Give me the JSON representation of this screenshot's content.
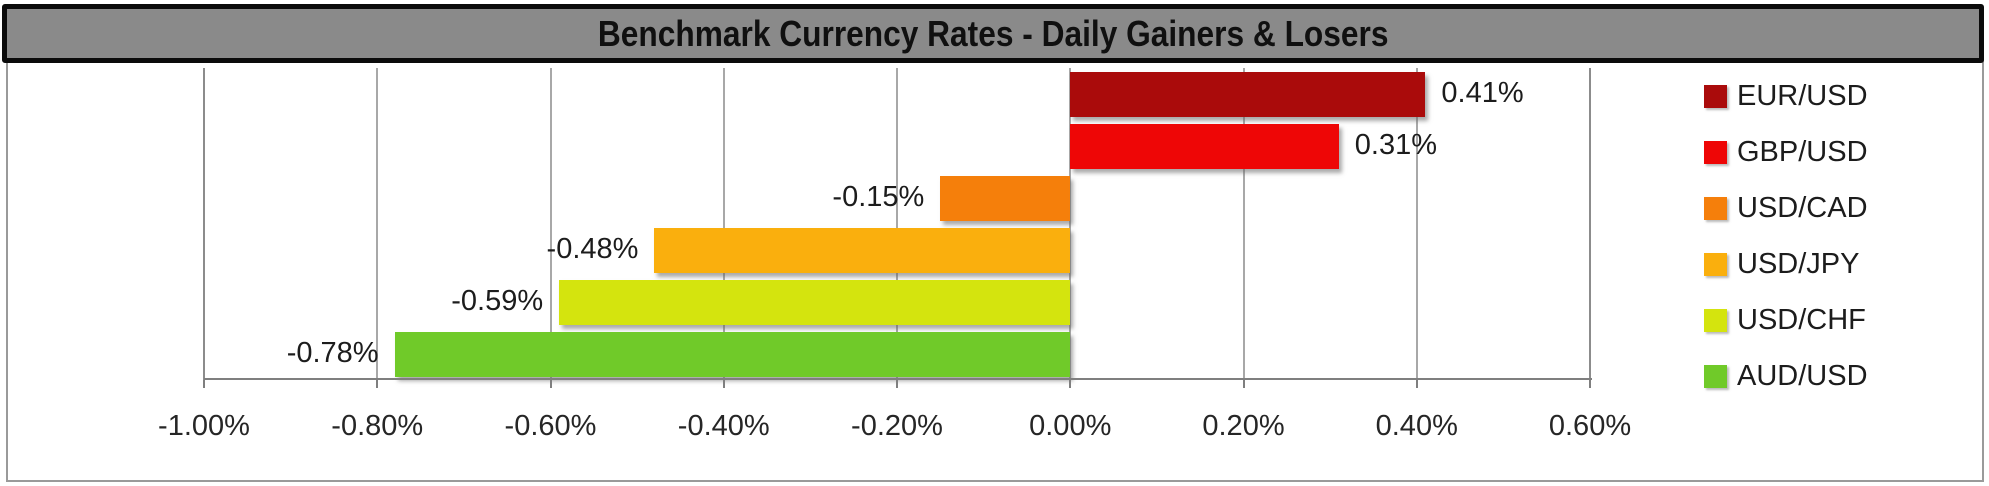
{
  "title": "Benchmark Currency Rates - Daily Gainers & Losers",
  "chart_data": {
    "type": "bar",
    "orientation": "horizontal",
    "title": "Benchmark Currency Rates - Daily Gainers & Losers",
    "categories": [
      "EUR/USD",
      "GBP/USD",
      "USD/CAD",
      "USD/JPY",
      "USD/CHF",
      "AUD/USD"
    ],
    "values": [
      0.41,
      0.31,
      -0.15,
      -0.48,
      -0.59,
      -0.78
    ],
    "value_labels": [
      "0.41%",
      "0.31%",
      "-0.15%",
      "-0.48%",
      "-0.59%",
      "-0.78%"
    ],
    "colors": [
      "#aa0b0b",
      "#ee0606",
      "#f57f0b",
      "#faaf0d",
      "#d4e40e",
      "#70ca29"
    ],
    "xlim": [
      -1.0,
      0.6
    ],
    "x_ticks": [
      -1.0,
      -0.8,
      -0.6,
      -0.4,
      -0.2,
      0.0,
      0.2,
      0.4,
      0.6
    ],
    "x_tick_labels": [
      "-1.00%",
      "-0.80%",
      "-0.60%",
      "-0.40%",
      "-0.20%",
      "0.00%",
      "0.20%",
      "0.40%",
      "0.60%"
    ],
    "grid": true,
    "legend_position": "right"
  },
  "style_colors": {
    "title_background": "#8a8a8a",
    "title_border": "#0b0b0b",
    "gridline": "#a8a8a8",
    "axis": "#7f7f7f",
    "outer_border": "#9a9a9a"
  }
}
